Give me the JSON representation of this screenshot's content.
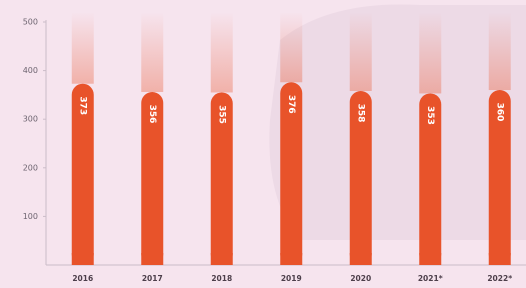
{
  "chart_data": {
    "type": "bar",
    "categories": [
      "2016",
      "2017",
      "2018",
      "2019",
      "2020",
      "2021*",
      "2022*"
    ],
    "values": [
      373,
      356,
      355,
      376,
      358,
      353,
      360
    ],
    "color": "#e8532a",
    "ylim": [
      0,
      500
    ],
    "yticks": [
      100,
      200,
      300,
      400,
      500
    ]
  }
}
